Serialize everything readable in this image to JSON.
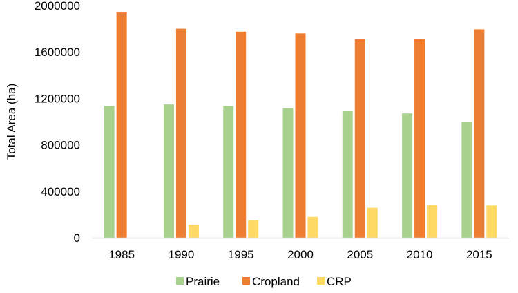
{
  "chart_data": {
    "type": "bar",
    "title": "",
    "xlabel": "",
    "ylabel": "Total Area (ha)",
    "categories": [
      "1985",
      "1990",
      "1995",
      "2000",
      "2005",
      "2010",
      "2015"
    ],
    "series": [
      {
        "name": "Prairie",
        "color": "#A9D18E",
        "values": [
          1135000,
          1148000,
          1135000,
          1115000,
          1095000,
          1070000,
          1000000
        ]
      },
      {
        "name": "Cropland",
        "color": "#ED7D31",
        "values": [
          1940000,
          1800000,
          1775000,
          1760000,
          1710000,
          1710000,
          1795000
        ]
      },
      {
        "name": "CRP",
        "color": "#FFD966",
        "values": [
          0,
          112000,
          150000,
          180000,
          258000,
          282000,
          278000
        ]
      }
    ],
    "yticks": [
      "0",
      "400000",
      "800000",
      "1200000",
      "1600000",
      "2000000"
    ],
    "ylim": [
      0,
      2000000
    ],
    "grid": false,
    "legend": "bottom"
  }
}
